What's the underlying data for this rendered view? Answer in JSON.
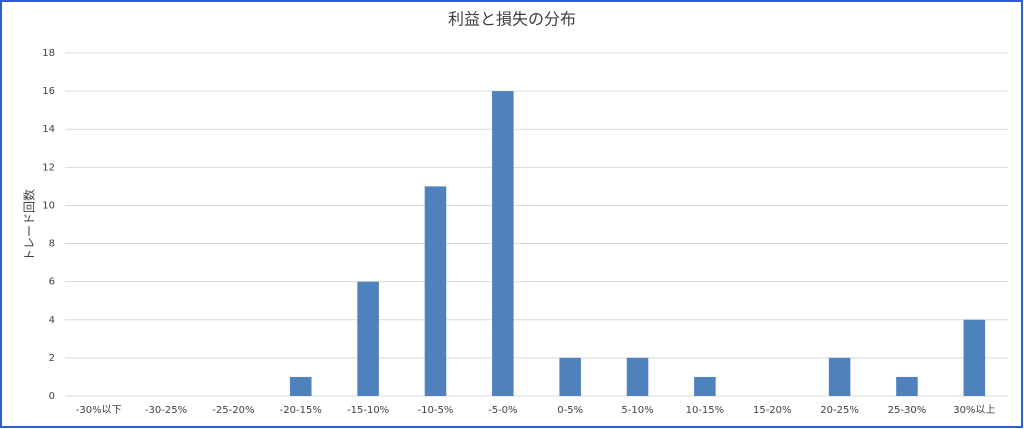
{
  "chart_data": {
    "type": "bar",
    "title": "利益と損失の分布",
    "y_label": "トレード回数",
    "categories": [
      "-30%以下",
      "-30-25%",
      "-25-20%",
      "-20-15%",
      "-15-10%",
      "-10-5%",
      "-5-0%",
      "0-5%",
      "5-10%",
      "10-15%",
      "15-20%",
      "20-25%",
      "25-30%",
      "30%以上"
    ],
    "values": [
      0,
      0,
      0,
      1,
      6,
      11,
      16,
      2,
      2,
      1,
      0,
      2,
      1,
      4
    ],
    "color": "#4f81bd",
    "ylim": [
      0,
      18
    ],
    "yticks": [
      0,
      2,
      4,
      6,
      8,
      10,
      12,
      14,
      16,
      18
    ],
    "grid": true
  }
}
